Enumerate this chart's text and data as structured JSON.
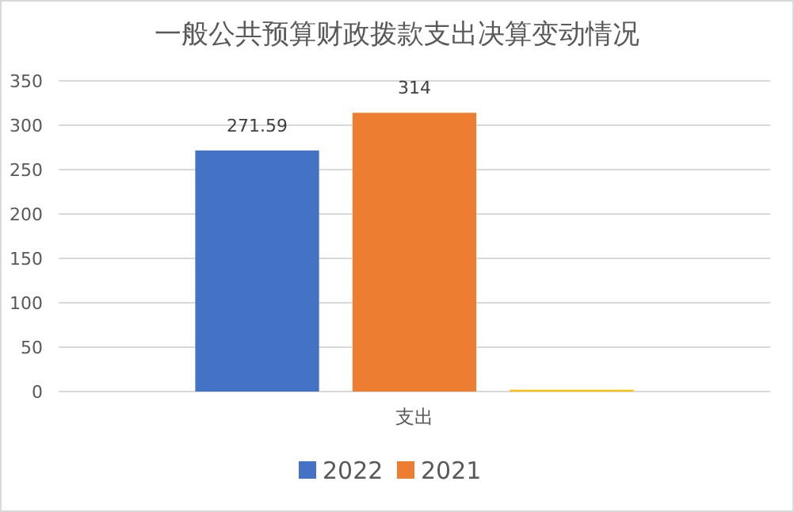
{
  "chart_data": {
    "type": "bar",
    "title": "一般公共预算财政拨款支出决算变动情况",
    "categories": [
      "支出"
    ],
    "series": [
      {
        "name": "2022",
        "color": "#4472c4",
        "values": [
          271.59
        ],
        "value_labels": [
          "271.59"
        ]
      },
      {
        "name": "2021",
        "color": "#ed7d31",
        "values": [
          314
        ],
        "value_labels": [
          "314"
        ]
      },
      {
        "color": "#ffc000",
        "values": [
          2
        ]
      }
    ],
    "ylim": [
      0,
      350
    ],
    "yticks": [
      0,
      50,
      100,
      150,
      200,
      250,
      300,
      350
    ],
    "grid": "y",
    "legend": "bottom"
  }
}
